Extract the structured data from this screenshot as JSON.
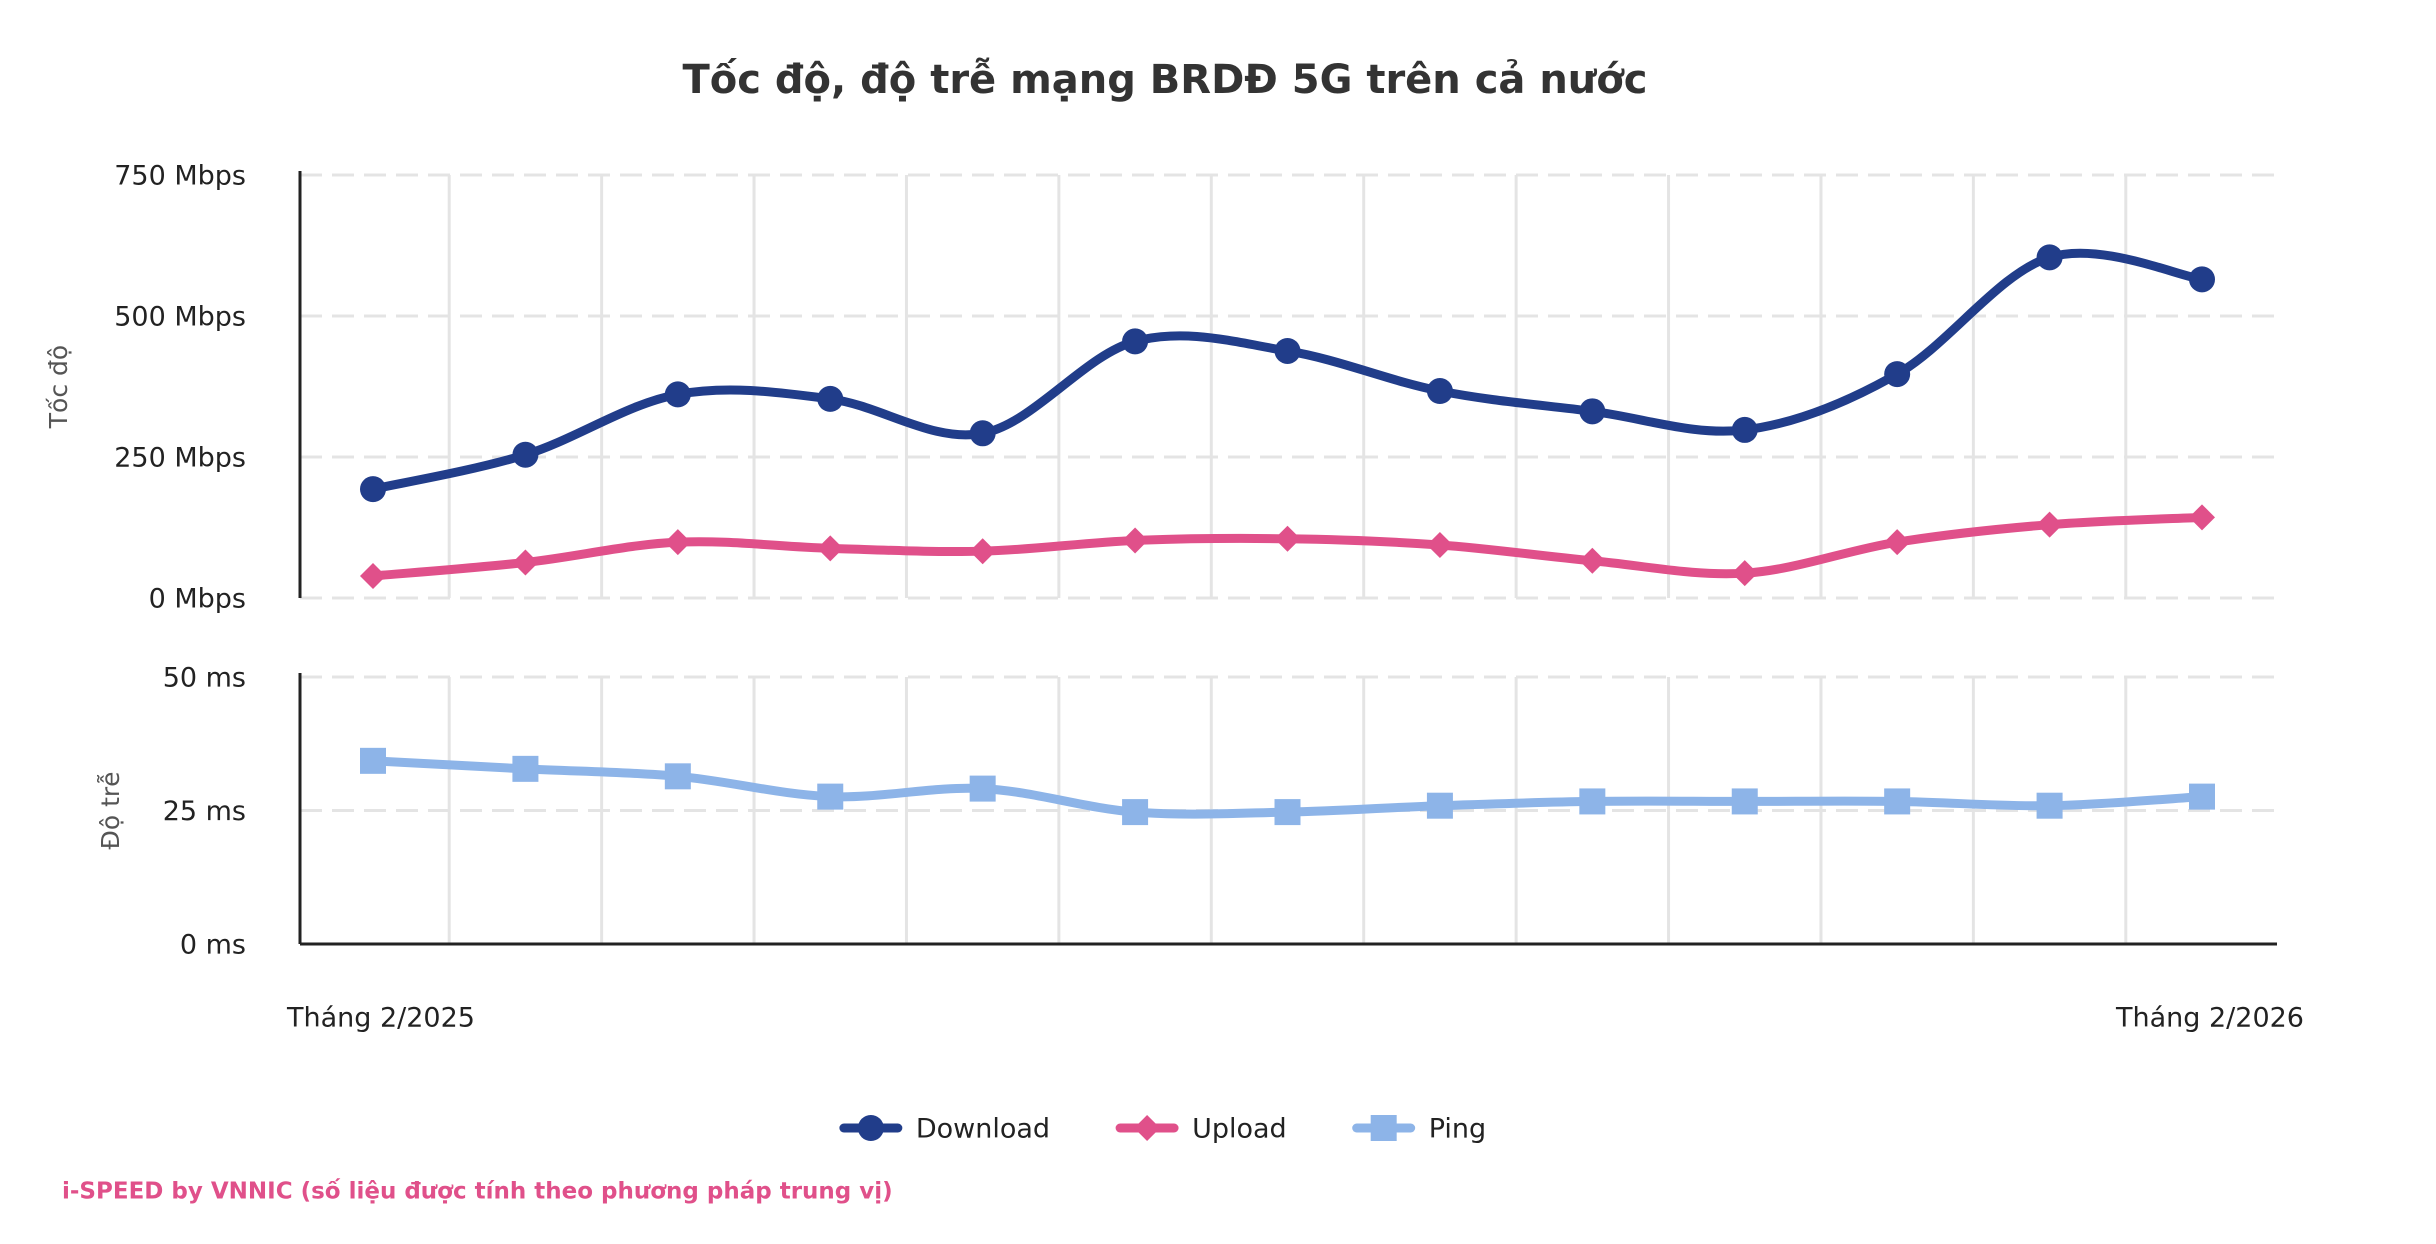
{
  "footer": "i-SPEED by VNNIC (số liệu được tính theo phương pháp trung vị)",
  "chart_data": [
    {
      "type": "line",
      "title": "Tốc độ, độ trễ mạng BRDĐ 5G trên cả nước",
      "y_label": "Tốc độ",
      "categories": [
        "Tháng 2/2025",
        null,
        null,
        null,
        null,
        null,
        null,
        null,
        null,
        null,
        null,
        null,
        "Tháng 2/2026"
      ],
      "ylim": [
        0,
        750
      ],
      "yticks": [
        {
          "value": 0,
          "label": "0 Mbps"
        },
        {
          "value": 250,
          "label": "250 Mbps"
        },
        {
          "value": 500,
          "label": "500 Mbps"
        },
        {
          "value": 750,
          "label": "750 Mbps"
        }
      ],
      "grid": true,
      "series": [
        {
          "name": "Download",
          "color": "#213d8a",
          "marker": "circle",
          "values": [
            193,
            254,
            361,
            353,
            292,
            455,
            438,
            367,
            331,
            298,
            397,
            604,
            565
          ]
        },
        {
          "name": "Upload",
          "color": "#e0508a",
          "marker": "diamond",
          "values": [
            39,
            63,
            99,
            88,
            83,
            102,
            105,
            94,
            66,
            44,
            99,
            130,
            143
          ]
        }
      ]
    },
    {
      "type": "line",
      "y_label": "Độ trễ",
      "categories": [
        "Tháng 2/2025",
        null,
        null,
        null,
        null,
        null,
        null,
        null,
        null,
        null,
        null,
        null,
        "Tháng 2/2026"
      ],
      "ylim": [
        0,
        50
      ],
      "yticks": [
        {
          "value": 0,
          "label": "0 ms"
        },
        {
          "value": 25,
          "label": "25 ms"
        },
        {
          "value": 50,
          "label": "50 ms"
        }
      ],
      "grid": true,
      "series": [
        {
          "name": "Ping",
          "color": "#8db4e8",
          "marker": "square",
          "values": [
            34.3,
            32.8,
            31.4,
            27.6,
            29.1,
            24.7,
            24.7,
            25.9,
            26.7,
            26.7,
            26.7,
            25.9,
            27.6
          ]
        }
      ]
    }
  ]
}
